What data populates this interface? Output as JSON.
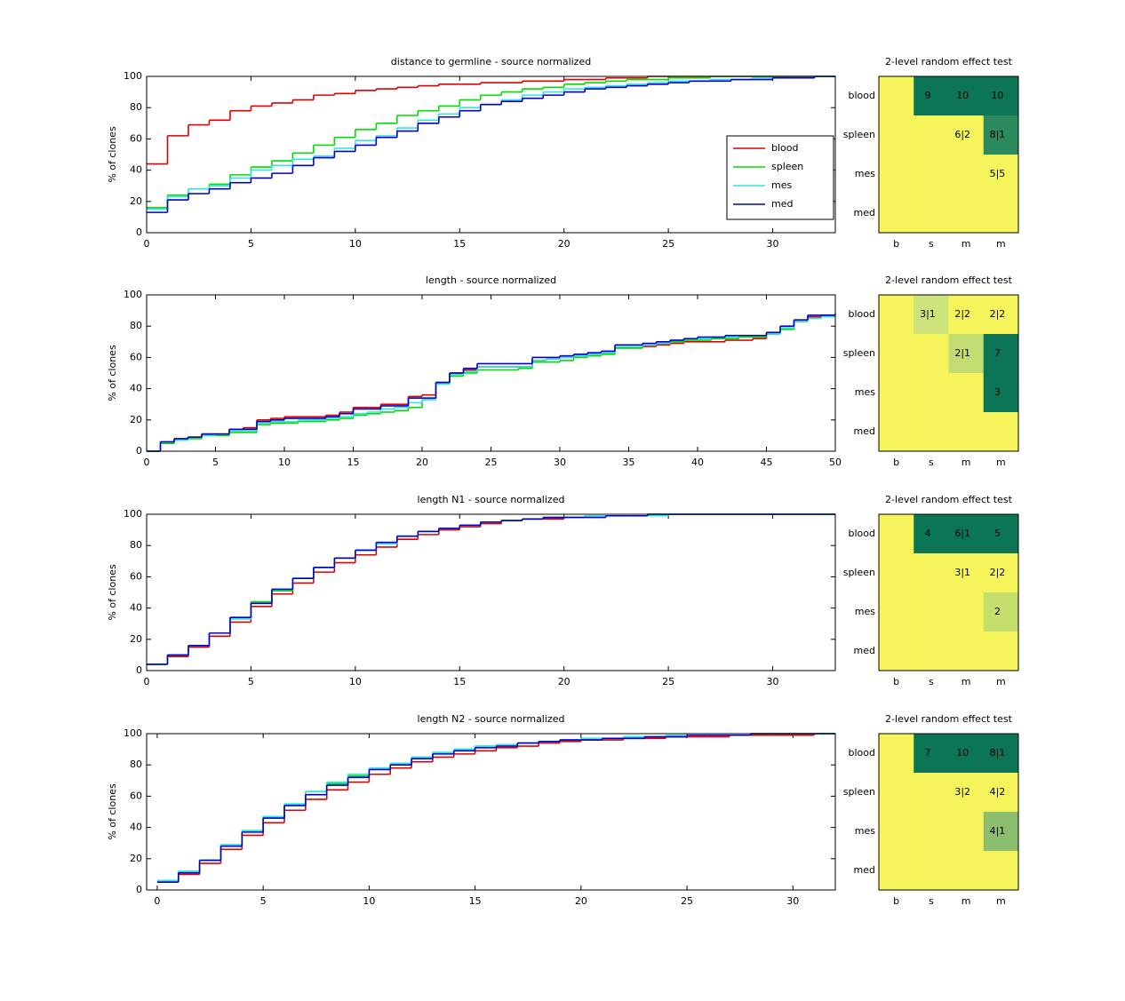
{
  "chart_data": [
    {
      "type": "step",
      "title": "distance to germline - source normalized",
      "ylabel": "% of clones",
      "x": [
        0,
        1,
        2,
        3,
        4,
        5,
        6,
        7,
        8,
        9,
        10,
        11,
        12,
        13,
        14,
        15,
        16,
        17,
        18,
        19,
        20,
        21,
        22,
        23,
        24,
        25,
        26,
        27,
        28,
        29,
        30,
        31,
        32,
        33
      ],
      "xlim": [
        0,
        33
      ],
      "xticks": [
        0,
        5,
        10,
        15,
        20,
        25,
        30
      ],
      "ylim": [
        0,
        100
      ],
      "yticks": [
        0,
        20,
        40,
        60,
        80,
        100
      ],
      "legend": "east",
      "series": [
        {
          "name": "blood",
          "color": "#e00000",
          "values": [
            44,
            62,
            69,
            72,
            78,
            81,
            83,
            85,
            88,
            89,
            91,
            92,
            93,
            94,
            95,
            95,
            96,
            96,
            97,
            97,
            98,
            98,
            99,
            99,
            100,
            100,
            100,
            100,
            100,
            100,
            100,
            100,
            100,
            100
          ]
        },
        {
          "name": "spleen",
          "color": "#00dd00",
          "values": [
            16,
            24,
            28,
            31,
            37,
            42,
            46,
            51,
            56,
            61,
            66,
            70,
            75,
            78,
            81,
            85,
            88,
            90,
            92,
            93,
            95,
            96,
            97,
            98,
            98,
            99,
            99,
            100,
            100,
            100,
            100,
            100,
            100,
            100
          ]
        },
        {
          "name": "mes",
          "color": "#33e6e6",
          "values": [
            15,
            23,
            28,
            30,
            35,
            40,
            43,
            47,
            49,
            54,
            59,
            62,
            67,
            72,
            76,
            80,
            82,
            85,
            88,
            90,
            92,
            93,
            94,
            95,
            96,
            97,
            97,
            98,
            98,
            99,
            99,
            99,
            100,
            100
          ]
        },
        {
          "name": "med",
          "color": "#0000cc",
          "values": [
            13,
            21,
            25,
            28,
            32,
            35,
            38,
            43,
            48,
            52,
            56,
            61,
            65,
            70,
            74,
            78,
            82,
            84,
            86,
            88,
            90,
            92,
            93,
            94,
            95,
            96,
            97,
            97,
            98,
            98,
            99,
            99,
            100,
            100
          ]
        }
      ]
    },
    {
      "type": "matrix",
      "title": "2-level random effect test",
      "row_labels": [
        "blood",
        "spleen",
        "mes",
        "med"
      ],
      "col_labels": [
        "b",
        "s",
        "m",
        "m"
      ],
      "background": "#f5f55b",
      "cells": [
        [
          null,
          "9",
          "10",
          "10"
        ],
        [
          null,
          null,
          "6|2",
          "8|1"
        ],
        [
          null,
          null,
          null,
          "5|5"
        ],
        [
          null,
          null,
          null,
          null
        ]
      ],
      "cell_colors": [
        [
          null,
          "#0b7556",
          "#0b7556",
          "#0b7556"
        ],
        [
          null,
          null,
          null,
          "#2b8a5e"
        ],
        [
          null,
          null,
          null,
          null
        ],
        [
          null,
          null,
          null,
          null
        ]
      ]
    },
    {
      "type": "step",
      "title": "length - source normalized",
      "ylabel": "% of clones",
      "x": [
        0,
        1,
        2,
        3,
        4,
        5,
        6,
        7,
        8,
        9,
        10,
        11,
        12,
        13,
        14,
        15,
        16,
        17,
        18,
        19,
        20,
        21,
        22,
        23,
        24,
        25,
        26,
        27,
        28,
        29,
        30,
        31,
        32,
        33,
        34,
        35,
        36,
        37,
        38,
        39,
        40,
        41,
        42,
        43,
        44,
        45,
        46,
        47,
        48,
        49,
        50
      ],
      "xlim": [
        0,
        50
      ],
      "xticks": [
        0,
        5,
        10,
        15,
        20,
        25,
        30,
        35,
        40,
        45,
        50
      ],
      "ylim": [
        0,
        100
      ],
      "yticks": [
        0,
        20,
        40,
        60,
        80,
        100
      ],
      "series": [
        {
          "color": "#e00000",
          "values": [
            0,
            5,
            8,
            9,
            11,
            11,
            14,
            15,
            20,
            21,
            22,
            22,
            22,
            23,
            25,
            28,
            28,
            30,
            30,
            35,
            36,
            44,
            50,
            52,
            54,
            54,
            54,
            54,
            58,
            59,
            60,
            61,
            62,
            63,
            66,
            66,
            67,
            68,
            69,
            70,
            70,
            70,
            71,
            71,
            72,
            75,
            78,
            83,
            86,
            87,
            87
          ]
        },
        {
          "color": "#00dd00",
          "values": [
            0,
            5,
            7,
            8,
            10,
            10,
            12,
            12,
            17,
            18,
            18,
            19,
            19,
            20,
            21,
            23,
            24,
            25,
            26,
            28,
            33,
            43,
            48,
            50,
            52,
            52,
            52,
            53,
            57,
            57,
            58,
            60,
            61,
            62,
            66,
            66,
            68,
            69,
            70,
            71,
            71,
            72,
            72,
            73,
            73,
            75,
            78,
            83,
            85,
            86,
            86
          ]
        },
        {
          "color": "#33e6e6",
          "values": [
            0,
            6,
            7,
            9,
            10,
            11,
            13,
            13,
            18,
            19,
            19,
            20,
            20,
            21,
            22,
            24,
            25,
            27,
            28,
            31,
            33,
            43,
            49,
            51,
            54,
            54,
            54,
            54,
            58,
            59,
            60,
            61,
            62,
            63,
            67,
            67,
            68,
            69,
            71,
            72,
            72,
            73,
            73,
            74,
            74,
            75,
            79,
            83,
            85,
            86,
            86
          ]
        },
        {
          "color": "#0000cc",
          "values": [
            0,
            6,
            8,
            9,
            11,
            11,
            14,
            14,
            19,
            20,
            21,
            21,
            21,
            22,
            24,
            27,
            27,
            29,
            29,
            34,
            34,
            44,
            50,
            53,
            56,
            56,
            56,
            56,
            60,
            60,
            61,
            62,
            63,
            64,
            68,
            68,
            69,
            70,
            71,
            72,
            73,
            73,
            74,
            74,
            74,
            76,
            80,
            84,
            87,
            87,
            88
          ]
        }
      ]
    },
    {
      "type": "matrix",
      "title": "2-level random effect test",
      "row_labels": [
        "blood",
        "spleen",
        "mes",
        "med"
      ],
      "col_labels": [
        "b",
        "s",
        "m",
        "m"
      ],
      "background": "#f5f55b",
      "cells": [
        [
          null,
          "3|1",
          "2|2",
          "2|2"
        ],
        [
          null,
          null,
          "2|1",
          "7"
        ],
        [
          null,
          null,
          null,
          "3"
        ],
        [
          null,
          null,
          null,
          null
        ]
      ],
      "cell_colors": [
        [
          null,
          "#cde27b",
          null,
          null
        ],
        [
          null,
          null,
          "#c3dd73",
          "#0b7556"
        ],
        [
          null,
          null,
          null,
          "#0b7556"
        ],
        [
          null,
          null,
          null,
          null
        ]
      ]
    },
    {
      "type": "step",
      "title": "length N1 - source normalized",
      "ylabel": "% of clones",
      "x": [
        0,
        1,
        2,
        3,
        4,
        5,
        6,
        7,
        8,
        9,
        10,
        11,
        12,
        13,
        14,
        15,
        16,
        17,
        18,
        19,
        20,
        21,
        22,
        23,
        24,
        25,
        26,
        27,
        28,
        29,
        30,
        31,
        32,
        33
      ],
      "xlim": [
        0,
        33
      ],
      "xticks": [
        0,
        5,
        10,
        15,
        20,
        25,
        30
      ],
      "ylim": [
        0,
        100
      ],
      "yticks": [
        0,
        20,
        40,
        60,
        80,
        100
      ],
      "series": [
        {
          "color": "#e00000",
          "values": [
            4,
            9,
            15,
            22,
            31,
            41,
            49,
            56,
            63,
            69,
            74,
            79,
            84,
            87,
            90,
            92,
            94,
            96,
            97,
            97,
            98,
            99,
            99,
            99,
            99,
            100,
            100,
            100,
            100,
            100,
            100,
            100,
            100,
            100
          ]
        },
        {
          "color": "#00dd00",
          "values": [
            4,
            10,
            16,
            24,
            34,
            44,
            51,
            59,
            66,
            72,
            77,
            82,
            86,
            89,
            91,
            93,
            95,
            96,
            97,
            98,
            98,
            99,
            99,
            99,
            100,
            100,
            100,
            100,
            100,
            100,
            100,
            100,
            100,
            100
          ]
        },
        {
          "color": "#33e6e6",
          "values": [
            4,
            10,
            16,
            24,
            33,
            43,
            52,
            59,
            66,
            72,
            77,
            81,
            86,
            89,
            91,
            93,
            95,
            96,
            97,
            98,
            98,
            99,
            99,
            99,
            99,
            100,
            100,
            100,
            100,
            100,
            100,
            100,
            100,
            100
          ]
        },
        {
          "color": "#0000cc",
          "values": [
            4,
            10,
            16,
            24,
            34,
            43,
            52,
            59,
            66,
            72,
            77,
            82,
            86,
            89,
            91,
            93,
            95,
            96,
            97,
            98,
            98,
            98,
            99,
            99,
            100,
            100,
            100,
            100,
            100,
            100,
            100,
            100,
            100,
            100
          ]
        }
      ]
    },
    {
      "type": "matrix",
      "title": "2-level random effect test",
      "row_labels": [
        "blood",
        "spleen",
        "mes",
        "med"
      ],
      "col_labels": [
        "b",
        "s",
        "m",
        "m"
      ],
      "background": "#f5f55b",
      "cells": [
        [
          null,
          "4",
          "6|1",
          "5"
        ],
        [
          null,
          null,
          "3|1",
          "2|2"
        ],
        [
          null,
          null,
          null,
          "2"
        ],
        [
          null,
          null,
          null,
          null
        ]
      ],
      "cell_colors": [
        [
          null,
          "#0b7556",
          "#0b7556",
          "#0b7556"
        ],
        [
          null,
          null,
          null,
          null
        ],
        [
          null,
          null,
          null,
          "#c5df6c"
        ],
        [
          null,
          null,
          null,
          null
        ]
      ]
    },
    {
      "type": "step",
      "title": "length N2 - source normalized",
      "ylabel": "% of clones",
      "x": [
        0,
        1,
        2,
        3,
        4,
        5,
        6,
        7,
        8,
        9,
        10,
        11,
        12,
        13,
        14,
        15,
        16,
        17,
        18,
        19,
        20,
        21,
        22,
        23,
        24,
        25,
        26,
        27,
        28,
        29,
        30,
        31
      ],
      "xlim": [
        -0.5,
        32
      ],
      "xticks": [
        0,
        5,
        10,
        15,
        20,
        25,
        30
      ],
      "ylim": [
        0,
        100
      ],
      "yticks": [
        0,
        20,
        40,
        60,
        80,
        100
      ],
      "series": [
        {
          "color": "#e00000",
          "values": [
            5,
            10,
            17,
            26,
            35,
            43,
            51,
            58,
            64,
            69,
            74,
            78,
            82,
            85,
            87,
            89,
            91,
            92,
            94,
            95,
            96,
            96,
            97,
            97,
            98,
            98,
            98,
            99,
            99,
            99,
            99,
            100
          ]
        },
        {
          "color": "#00dd00",
          "values": [
            6,
            12,
            19,
            28,
            38,
            47,
            55,
            63,
            68,
            73,
            78,
            81,
            85,
            88,
            90,
            92,
            93,
            94,
            95,
            96,
            97,
            97,
            98,
            98,
            99,
            99,
            99,
            99,
            100,
            100,
            100,
            100
          ]
        },
        {
          "color": "#33e6e6",
          "values": [
            6,
            12,
            19,
            29,
            38,
            47,
            55,
            63,
            69,
            74,
            78,
            81,
            85,
            88,
            90,
            92,
            93,
            94,
            95,
            96,
            97,
            97,
            98,
            98,
            99,
            99,
            99,
            99,
            100,
            100,
            100,
            100
          ]
        },
        {
          "color": "#0000cc",
          "values": [
            5,
            11,
            19,
            28,
            37,
            46,
            54,
            61,
            67,
            72,
            77,
            80,
            84,
            87,
            89,
            91,
            92,
            94,
            95,
            96,
            96,
            97,
            97,
            98,
            98,
            99,
            99,
            99,
            100,
            100,
            100,
            100
          ]
        }
      ]
    },
    {
      "type": "matrix",
      "title": "2-level random effect test",
      "row_labels": [
        "blood",
        "spleen",
        "mes",
        "med"
      ],
      "col_labels": [
        "b",
        "s",
        "m",
        "m"
      ],
      "background": "#f5f55b",
      "cells": [
        [
          null,
          "7",
          "10",
          "8|1"
        ],
        [
          null,
          null,
          "3|2",
          "4|2"
        ],
        [
          null,
          null,
          null,
          "4|1"
        ],
        [
          null,
          null,
          null,
          null
        ]
      ],
      "cell_colors": [
        [
          null,
          "#0b7556",
          "#0b7556",
          "#0b7556"
        ],
        [
          null,
          null,
          null,
          null
        ],
        [
          null,
          null,
          null,
          "#8dbe6d"
        ],
        [
          null,
          null,
          null,
          null
        ]
      ]
    }
  ]
}
